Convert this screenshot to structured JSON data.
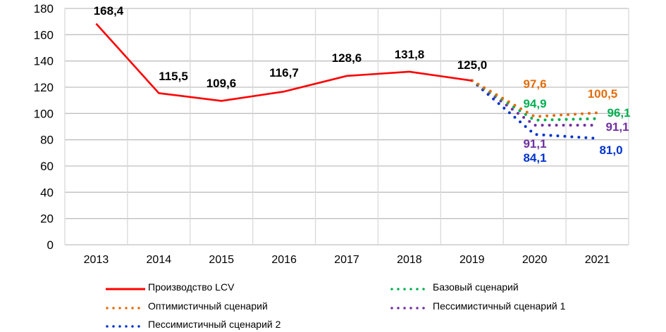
{
  "chart_data": {
    "type": "line",
    "title": "",
    "xlabel": "",
    "ylabel": "",
    "ylim": [
      0,
      180
    ],
    "yticks": [
      0,
      20,
      40,
      60,
      80,
      100,
      120,
      140,
      160,
      180
    ],
    "grid": true,
    "legend_position": "bottom",
    "categories": [
      "2013",
      "2014",
      "2015",
      "2016",
      "2017",
      "2018",
      "2019",
      "2020",
      "2021"
    ],
    "series": [
      {
        "name": "Производство LCV",
        "color": "#ff0000",
        "style": "solid",
        "values": [
          168.4,
          115.5,
          109.6,
          116.7,
          128.6,
          131.8,
          125.0,
          null,
          null
        ],
        "labels": [
          "168,4",
          "115,5",
          "109,6",
          "116,7",
          "128,6",
          "131,8",
          "125,0",
          null,
          null
        ],
        "label_color": "#000000"
      },
      {
        "name": "Базовый сценарий",
        "color": "#00b050",
        "style": "dotted",
        "values": [
          null,
          null,
          null,
          null,
          null,
          null,
          125.0,
          94.9,
          96.1
        ],
        "labels": [
          null,
          null,
          null,
          null,
          null,
          null,
          null,
          "94,9",
          "96,1"
        ]
      },
      {
        "name": "Оптимистичный сценарий",
        "color": "#e36c0a",
        "style": "dotted",
        "values": [
          null,
          null,
          null,
          null,
          null,
          null,
          125.0,
          97.6,
          100.5
        ],
        "labels": [
          null,
          null,
          null,
          null,
          null,
          null,
          null,
          "97,6",
          "100,5"
        ]
      },
      {
        "name": "Пессимистичный сценарий 1",
        "color": "#7030a0",
        "style": "dotted",
        "values": [
          null,
          null,
          null,
          null,
          null,
          null,
          125.0,
          91.1,
          91.1
        ],
        "labels": [
          null,
          null,
          null,
          null,
          null,
          null,
          null,
          "91,1",
          "91,1"
        ]
      },
      {
        "name": "Пессимистичный сценарий 2",
        "color": "#0033cc",
        "style": "dotted",
        "values": [
          null,
          null,
          null,
          null,
          null,
          null,
          125.0,
          84.1,
          81.0
        ],
        "labels": [
          null,
          null,
          null,
          null,
          null,
          null,
          null,
          "84,1",
          "81,0"
        ]
      }
    ]
  },
  "legend": {
    "production": "Производство LCV",
    "base": "Базовый сценарий",
    "optimistic": "Оптимистичный сценарий",
    "pessimistic1": "Пессимистичный сценарий 1",
    "pessimistic2": "Пессимистичный сценарий 2"
  }
}
